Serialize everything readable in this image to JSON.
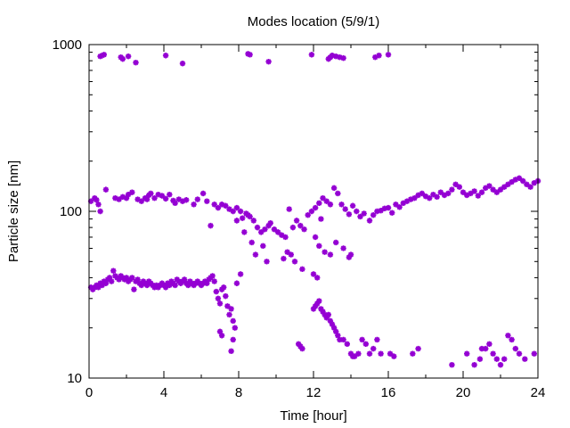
{
  "chart_data": {
    "type": "scatter",
    "title": "Modes location (5/9/1)",
    "xlabel": "Time [hour]",
    "ylabel": "Particle size [nm]",
    "xlim": [
      0,
      24
    ],
    "ylim": [
      10,
      1000
    ],
    "yscale": "log",
    "xticks": [
      0,
      4,
      8,
      12,
      16,
      20,
      24
    ],
    "yticks": [
      10,
      100,
      1000
    ],
    "marker_color": "#9400d3",
    "series": [
      {
        "values": [
          [
            0.1,
            35
          ],
          [
            0.2,
            34
          ],
          [
            0.3,
            35
          ],
          [
            0.4,
            36
          ],
          [
            0.5,
            35
          ],
          [
            0.6,
            37
          ],
          [
            0.7,
            36
          ],
          [
            0.8,
            38
          ],
          [
            0.9,
            37
          ],
          [
            1.0,
            39
          ],
          [
            1.1,
            40
          ],
          [
            1.2,
            38
          ],
          [
            1.3,
            44
          ],
          [
            1.4,
            41
          ],
          [
            1.5,
            40
          ],
          [
            1.6,
            39
          ],
          [
            1.7,
            41
          ],
          [
            1.8,
            40
          ],
          [
            1.9,
            39
          ],
          [
            2.0,
            40
          ],
          [
            2.1,
            38
          ],
          [
            2.2,
            39
          ],
          [
            2.3,
            40
          ],
          [
            2.4,
            34
          ],
          [
            2.5,
            38
          ],
          [
            2.6,
            39
          ],
          [
            2.7,
            37
          ],
          [
            2.8,
            36
          ],
          [
            2.9,
            38
          ],
          [
            3.0,
            37
          ],
          [
            3.1,
            36
          ],
          [
            3.2,
            38
          ],
          [
            3.3,
            37
          ],
          [
            3.4,
            36
          ],
          [
            3.5,
            35
          ],
          [
            3.6,
            36
          ],
          [
            3.7,
            35
          ],
          [
            3.8,
            36
          ],
          [
            3.9,
            37
          ],
          [
            4.0,
            36
          ],
          [
            4.1,
            35
          ],
          [
            4.2,
            37
          ],
          [
            4.3,
            36
          ],
          [
            4.4,
            38
          ],
          [
            4.5,
            37
          ],
          [
            4.6,
            36
          ],
          [
            4.7,
            39
          ],
          [
            4.8,
            38
          ],
          [
            4.9,
            37
          ],
          [
            5.0,
            38
          ],
          [
            5.1,
            39
          ],
          [
            5.2,
            37
          ],
          [
            5.3,
            36
          ],
          [
            5.4,
            38
          ],
          [
            5.5,
            37
          ],
          [
            5.6,
            36
          ],
          [
            5.7,
            37
          ],
          [
            5.8,
            38
          ],
          [
            5.9,
            37
          ],
          [
            6.0,
            36
          ],
          [
            6.1,
            37
          ],
          [
            6.2,
            38
          ],
          [
            6.3,
            37
          ],
          [
            6.4,
            39
          ],
          [
            6.5,
            40
          ],
          [
            6.6,
            41
          ],
          [
            6.7,
            38
          ],
          [
            6.8,
            33
          ],
          [
            6.9,
            30
          ],
          [
            7.0,
            28
          ],
          [
            7.1,
            34
          ],
          [
            7.2,
            35
          ],
          [
            7.3,
            31
          ],
          [
            7.4,
            27
          ],
          [
            7.5,
            24
          ],
          [
            7.6,
            26
          ],
          [
            7.7,
            22
          ],
          [
            7.8,
            20
          ],
          [
            7.9,
            37
          ],
          [
            8.1,
            42
          ],
          [
            7.0,
            19
          ],
          [
            7.1,
            18
          ],
          [
            7.6,
            14.5
          ],
          [
            7.7,
            17
          ],
          [
            11.2,
            16
          ],
          [
            11.3,
            15.5
          ],
          [
            11.4,
            15
          ],
          [
            12.0,
            26
          ],
          [
            12.1,
            27
          ],
          [
            12.2,
            28
          ],
          [
            12.3,
            29
          ],
          [
            12.4,
            26
          ],
          [
            12.5,
            25
          ],
          [
            12.6,
            24
          ],
          [
            12.7,
            23
          ],
          [
            12.8,
            24
          ],
          [
            12.9,
            22
          ],
          [
            13.0,
            21
          ],
          [
            13.1,
            20
          ],
          [
            13.2,
            19
          ],
          [
            13.3,
            18
          ],
          [
            13.4,
            17
          ],
          [
            13.6,
            17
          ],
          [
            13.8,
            16
          ],
          [
            14.0,
            14
          ],
          [
            14.1,
            13.5
          ],
          [
            14.2,
            13.5
          ],
          [
            14.4,
            14
          ],
          [
            14.6,
            17
          ],
          [
            14.8,
            16
          ],
          [
            15.0,
            14
          ],
          [
            15.2,
            15
          ],
          [
            15.4,
            17
          ],
          [
            15.6,
            14
          ],
          [
            16.1,
            14
          ],
          [
            16.3,
            13.5
          ],
          [
            17.3,
            14
          ],
          [
            17.6,
            15
          ],
          [
            19.4,
            12
          ],
          [
            20.2,
            14
          ],
          [
            20.6,
            12
          ],
          [
            20.9,
            13
          ],
          [
            21.0,
            15
          ],
          [
            21.2,
            15
          ],
          [
            21.4,
            16
          ],
          [
            21.6,
            14
          ],
          [
            21.8,
            13
          ],
          [
            22.0,
            12
          ],
          [
            22.2,
            13
          ],
          [
            22.4,
            18
          ],
          [
            22.6,
            17
          ],
          [
            22.8,
            15
          ],
          [
            23.0,
            14
          ],
          [
            23.3,
            13
          ],
          [
            23.8,
            14
          ],
          [
            0.1,
            115
          ],
          [
            0.3,
            120
          ],
          [
            0.4,
            117
          ],
          [
            0.5,
            110
          ],
          [
            0.6,
            100
          ],
          [
            0.9,
            135
          ],
          [
            1.4,
            120
          ],
          [
            1.6,
            118
          ],
          [
            1.8,
            122
          ],
          [
            2.0,
            120
          ],
          [
            2.1,
            126
          ],
          [
            2.3,
            130
          ],
          [
            2.6,
            118
          ],
          [
            2.8,
            115
          ],
          [
            3.0,
            120
          ],
          [
            3.1,
            118
          ],
          [
            3.2,
            125
          ],
          [
            3.3,
            128
          ],
          [
            3.5,
            120
          ],
          [
            3.7,
            126
          ],
          [
            3.9,
            124
          ],
          [
            4.1,
            119
          ],
          [
            4.3,
            126
          ],
          [
            4.5,
            116
          ],
          [
            4.6,
            112
          ],
          [
            4.8,
            118
          ],
          [
            5.0,
            115
          ],
          [
            5.2,
            117
          ],
          [
            5.6,
            110
          ],
          [
            5.8,
            118
          ],
          [
            6.1,
            128
          ],
          [
            6.3,
            115
          ],
          [
            6.5,
            82
          ],
          [
            6.7,
            110
          ],
          [
            6.9,
            105
          ],
          [
            7.1,
            110
          ],
          [
            7.3,
            108
          ],
          [
            7.5,
            103
          ],
          [
            7.7,
            100
          ],
          [
            7.9,
            105
          ],
          [
            8.1,
            100
          ],
          [
            8.2,
            91
          ],
          [
            8.4,
            97
          ],
          [
            8.5,
            95
          ],
          [
            8.6,
            93
          ],
          [
            8.8,
            88
          ],
          [
            9.0,
            80
          ],
          [
            9.2,
            75
          ],
          [
            9.4,
            78
          ],
          [
            9.6,
            82
          ],
          [
            9.9,
            78
          ],
          [
            10.1,
            75
          ],
          [
            10.3,
            72
          ],
          [
            10.5,
            70
          ],
          [
            10.7,
            103
          ],
          [
            10.9,
            80
          ],
          [
            11.1,
            88
          ],
          [
            11.3,
            82
          ],
          [
            11.5,
            78
          ],
          [
            11.7,
            95
          ],
          [
            11.9,
            100
          ],
          [
            12.1,
            105
          ],
          [
            12.3,
            112
          ],
          [
            12.5,
            120
          ],
          [
            12.7,
            115
          ],
          [
            12.9,
            110
          ],
          [
            13.1,
            138
          ],
          [
            13.3,
            128
          ],
          [
            13.5,
            110
          ],
          [
            13.7,
            103
          ],
          [
            13.9,
            96
          ],
          [
            14.1,
            108
          ],
          [
            14.3,
            100
          ],
          [
            14.5,
            93
          ],
          [
            14.7,
            97
          ],
          [
            15.0,
            88
          ],
          [
            15.2,
            95
          ],
          [
            15.4,
            100
          ],
          [
            15.6,
            101
          ],
          [
            15.8,
            104
          ],
          [
            16.0,
            105
          ],
          [
            16.2,
            98
          ],
          [
            16.4,
            110
          ],
          [
            16.6,
            106
          ],
          [
            16.8,
            112
          ],
          [
            17.0,
            115
          ],
          [
            17.2,
            118
          ],
          [
            17.4,
            120
          ],
          [
            17.6,
            125
          ],
          [
            17.8,
            128
          ],
          [
            18.0,
            123
          ],
          [
            18.2,
            120
          ],
          [
            18.4,
            126
          ],
          [
            18.6,
            122
          ],
          [
            18.8,
            130
          ],
          [
            19.0,
            125
          ],
          [
            19.2,
            128
          ],
          [
            19.4,
            135
          ],
          [
            19.6,
            145
          ],
          [
            19.8,
            140
          ],
          [
            20.0,
            130
          ],
          [
            20.2,
            125
          ],
          [
            20.4,
            128
          ],
          [
            20.6,
            132
          ],
          [
            20.8,
            124
          ],
          [
            21.0,
            130
          ],
          [
            21.2,
            138
          ],
          [
            21.4,
            142
          ],
          [
            21.6,
            135
          ],
          [
            21.8,
            130
          ],
          [
            22.0,
            135
          ],
          [
            22.2,
            140
          ],
          [
            22.4,
            145
          ],
          [
            22.6,
            150
          ],
          [
            22.8,
            155
          ],
          [
            23.0,
            158
          ],
          [
            23.2,
            152
          ],
          [
            23.4,
            145
          ],
          [
            23.6,
            140
          ],
          [
            23.8,
            148
          ],
          [
            24.0,
            152
          ],
          [
            7.9,
            88
          ],
          [
            8.3,
            75
          ],
          [
            8.7,
            65
          ],
          [
            8.9,
            55
          ],
          [
            9.3,
            62
          ],
          [
            9.5,
            50
          ],
          [
            9.7,
            85
          ],
          [
            10.4,
            52
          ],
          [
            10.6,
            57
          ],
          [
            10.8,
            55
          ],
          [
            11.0,
            50
          ],
          [
            11.4,
            45
          ],
          [
            12.0,
            42
          ],
          [
            12.2,
            40
          ],
          [
            12.3,
            62
          ],
          [
            12.6,
            57
          ],
          [
            12.9,
            55
          ],
          [
            13.2,
            65
          ],
          [
            13.6,
            60
          ],
          [
            13.9,
            53
          ],
          [
            14.0,
            55
          ],
          [
            12.4,
            90
          ],
          [
            12.1,
            70
          ],
          [
            0.6,
            850
          ],
          [
            0.7,
            860
          ],
          [
            0.8,
            870
          ],
          [
            1.7,
            840
          ],
          [
            1.8,
            820
          ],
          [
            2.1,
            850
          ],
          [
            2.5,
            780
          ],
          [
            4.1,
            860
          ],
          [
            5.0,
            770
          ],
          [
            8.5,
            880
          ],
          [
            8.6,
            870
          ],
          [
            9.6,
            790
          ],
          [
            11.9,
            870
          ],
          [
            12.8,
            820
          ],
          [
            12.9,
            840
          ],
          [
            13.0,
            860
          ],
          [
            13.2,
            850
          ],
          [
            13.4,
            840
          ],
          [
            13.6,
            830
          ],
          [
            15.3,
            840
          ],
          [
            15.5,
            860
          ],
          [
            16.0,
            870
          ]
        ]
      }
    ]
  }
}
